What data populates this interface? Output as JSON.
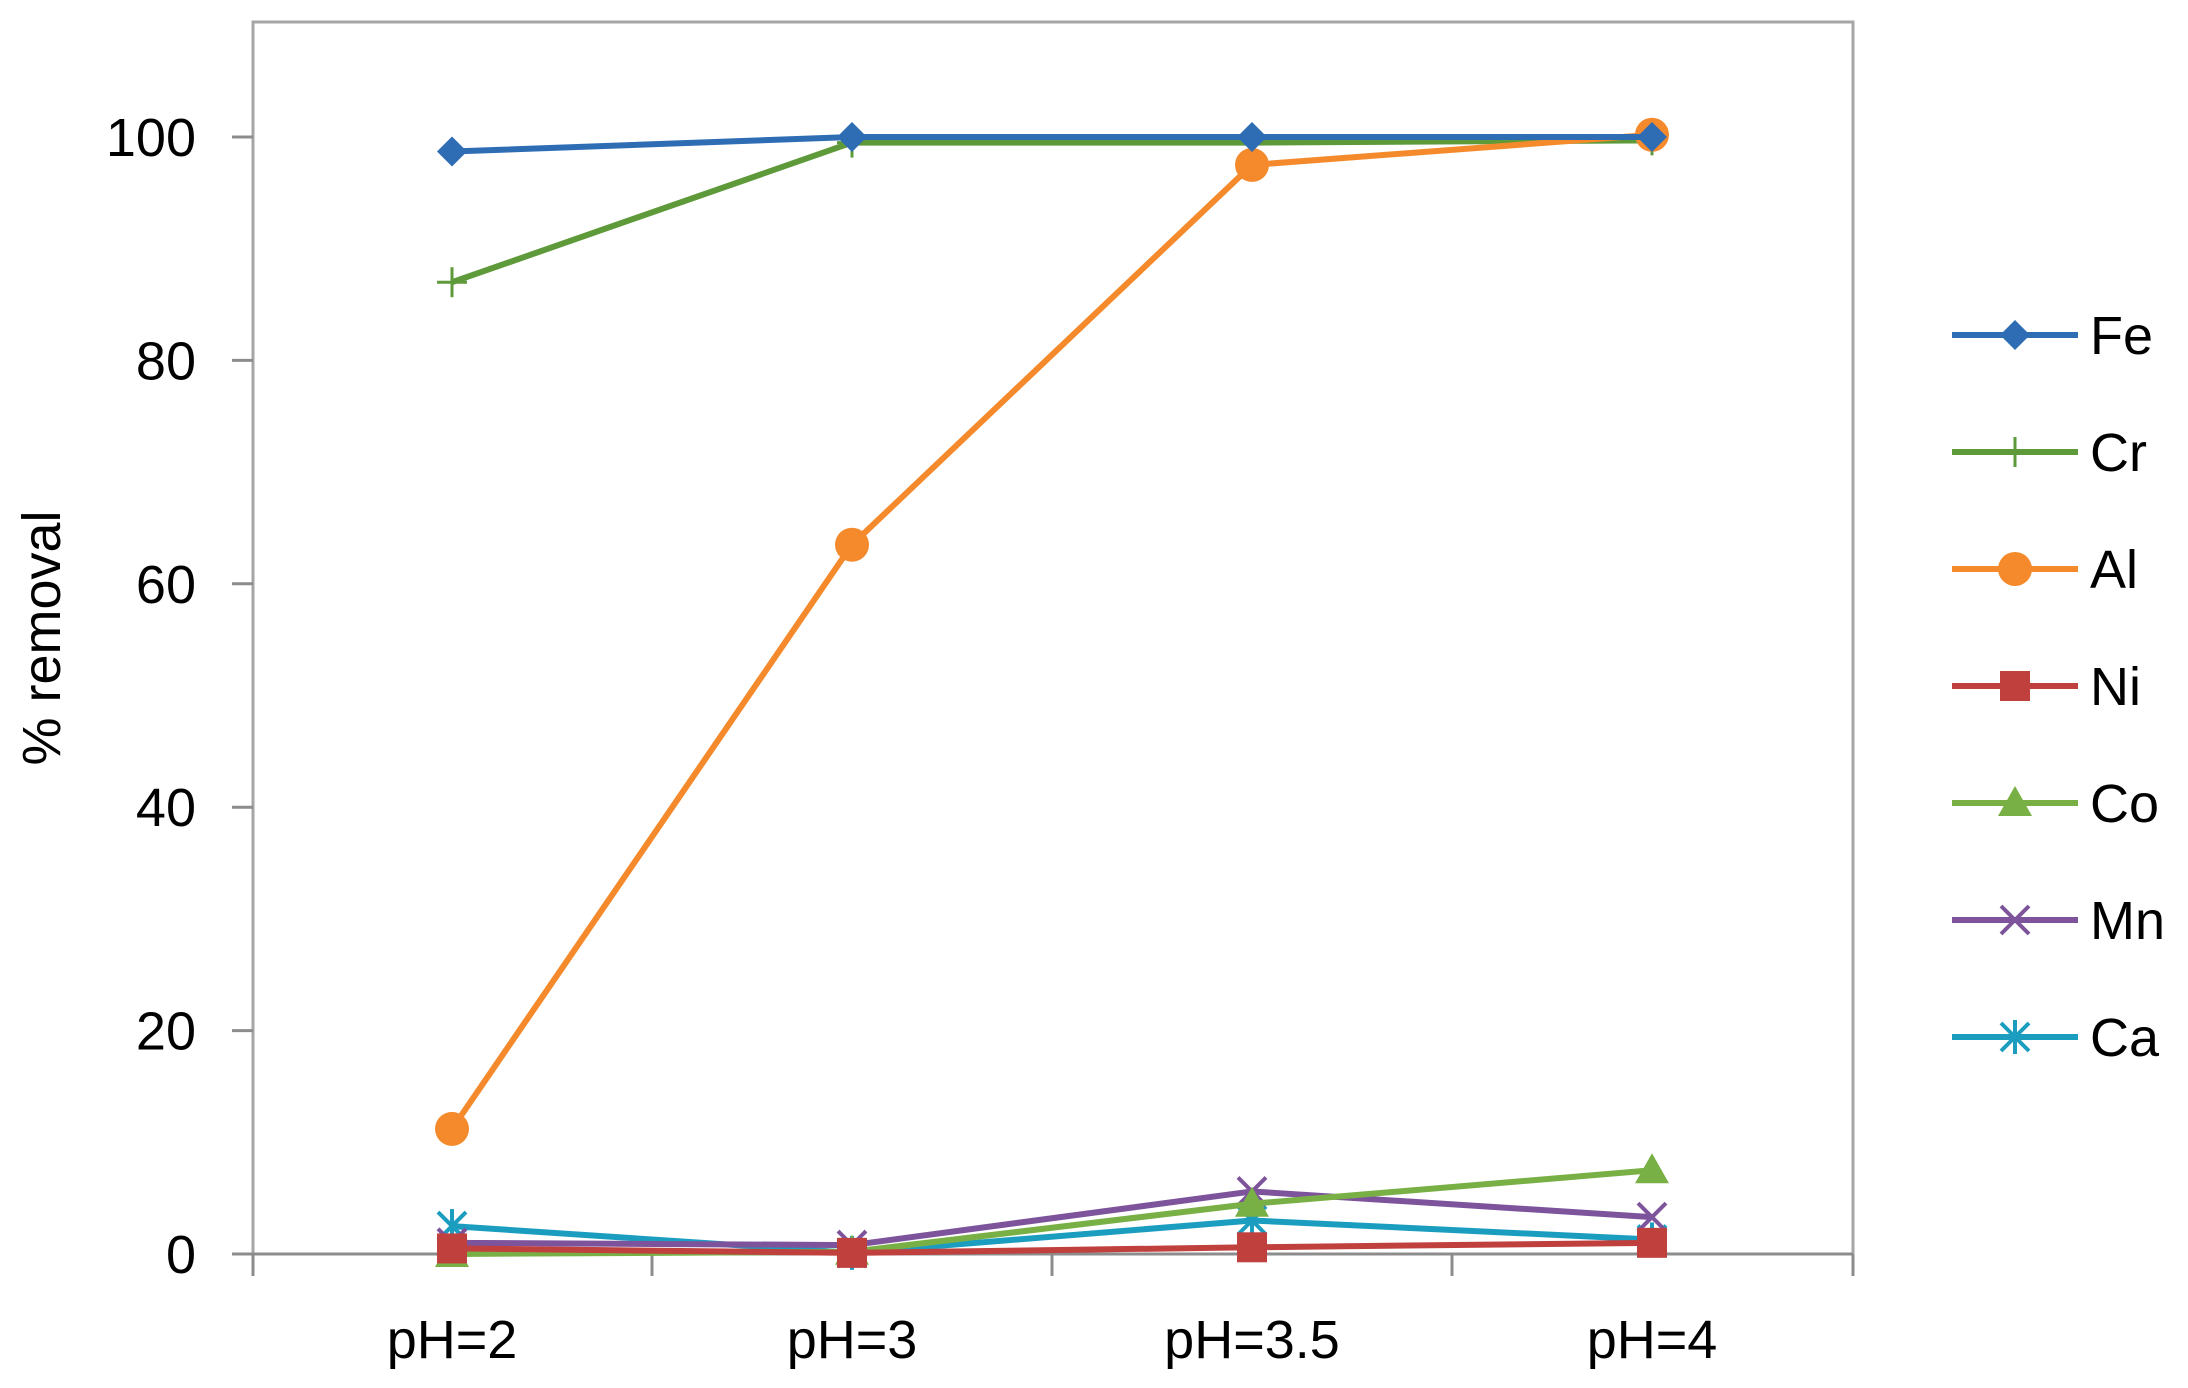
{
  "chart_data": {
    "type": "line",
    "categories": [
      "pH=2",
      "pH=3",
      "pH=3.5",
      "pH=4"
    ],
    "ylabel": "% removal",
    "xlabel": "",
    "ylim": [
      0,
      110
    ],
    "yticks": [
      0,
      20,
      40,
      60,
      80,
      100
    ],
    "grid": false,
    "legend_position": "right",
    "series": [
      {
        "name": "Fe",
        "values": [
          98.7,
          100,
          100,
          100
        ],
        "color": "#2E6DB4",
        "marker": "diamond"
      },
      {
        "name": "Cr",
        "values": [
          87,
          99.5,
          99.5,
          99.7
        ],
        "color": "#5E9A3A",
        "marker": "plus"
      },
      {
        "name": "Al",
        "values": [
          11.2,
          63.5,
          97.5,
          100.2
        ],
        "color": "#F58A2C",
        "marker": "circle"
      },
      {
        "name": "Ni",
        "values": [
          0.5,
          0.1,
          0.6,
          1.0
        ],
        "color": "#C0403E",
        "marker": "square"
      },
      {
        "name": "Co",
        "values": [
          0,
          0.2,
          4.5,
          7.5
        ],
        "color": "#79B045",
        "marker": "triangle"
      },
      {
        "name": "Mn",
        "values": [
          1.0,
          0.8,
          5.6,
          3.3
        ],
        "color": "#7D549C",
        "marker": "x"
      },
      {
        "name": "Ca",
        "values": [
          2.5,
          0.1,
          3.0,
          1.3
        ],
        "color": "#1B9DC0",
        "marker": "star"
      }
    ]
  }
}
